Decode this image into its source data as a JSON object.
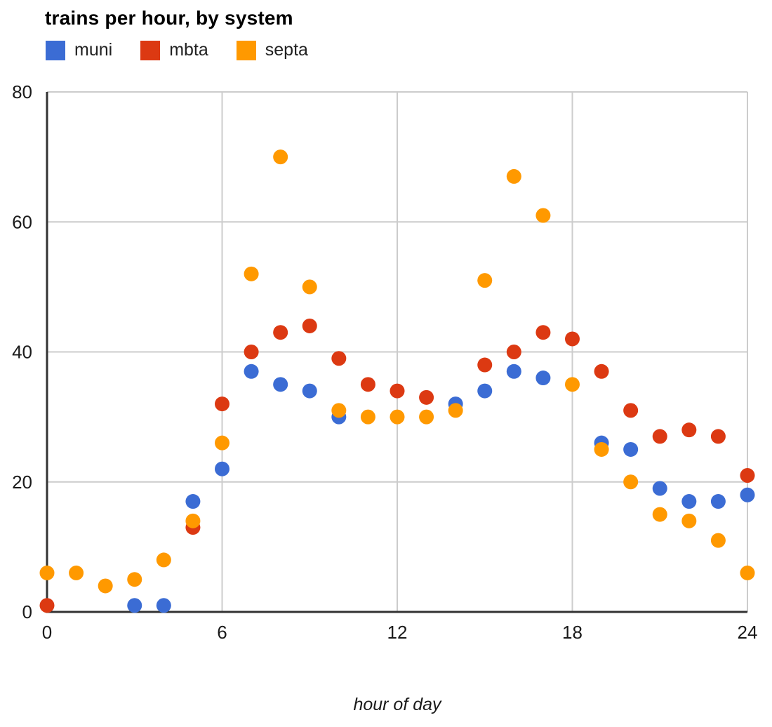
{
  "title": "trains per hour, by system",
  "legend": [
    {
      "label": "muni",
      "color": "#3B6CD4"
    },
    {
      "label": "mbta",
      "color": "#DC3912"
    },
    {
      "label": "septa",
      "color": "#FF9900"
    }
  ],
  "colors": {
    "grid": "#cccccc",
    "axis": "#333333",
    "muni": "#3B6CD4",
    "mbta": "#DC3912",
    "septa": "#FF9900"
  },
  "chart_data": {
    "type": "scatter",
    "title": "trains per hour, by system",
    "xlabel": "hour of day",
    "ylabel": "",
    "xlim": [
      0,
      24
    ],
    "ylim": [
      0,
      80
    ],
    "x_ticks": [
      0,
      6,
      12,
      18,
      24
    ],
    "y_ticks": [
      0,
      20,
      40,
      60,
      80
    ],
    "grid": true,
    "legend_position": "top-left",
    "marker_radius_px": 10.5,
    "series": [
      {
        "name": "muni",
        "color": "#3B6CD4",
        "points": [
          [
            3,
            1
          ],
          [
            4,
            1
          ],
          [
            5,
            17
          ],
          [
            6,
            22
          ],
          [
            7,
            37
          ],
          [
            8,
            35
          ],
          [
            9,
            34
          ],
          [
            10,
            30
          ],
          [
            14,
            32
          ],
          [
            15,
            34
          ],
          [
            16,
            37
          ],
          [
            17,
            36
          ],
          [
            19,
            26
          ],
          [
            20,
            25
          ],
          [
            21,
            19
          ],
          [
            22,
            17
          ],
          [
            23,
            17
          ],
          [
            24,
            18
          ]
        ]
      },
      {
        "name": "mbta",
        "color": "#DC3912",
        "points": [
          [
            0,
            1
          ],
          [
            5,
            13
          ],
          [
            6,
            32
          ],
          [
            7,
            40
          ],
          [
            8,
            43
          ],
          [
            9,
            44
          ],
          [
            10,
            39
          ],
          [
            11,
            35
          ],
          [
            12,
            34
          ],
          [
            13,
            33
          ],
          [
            15,
            38
          ],
          [
            16,
            40
          ],
          [
            17,
            43
          ],
          [
            18,
            42
          ],
          [
            19,
            37
          ],
          [
            20,
            31
          ],
          [
            21,
            27
          ],
          [
            22,
            28
          ],
          [
            23,
            27
          ],
          [
            24,
            21
          ]
        ]
      },
      {
        "name": "septa",
        "color": "#FF9900",
        "points": [
          [
            0,
            6
          ],
          [
            1,
            6
          ],
          [
            2,
            4
          ],
          [
            3,
            5
          ],
          [
            4,
            8
          ],
          [
            5,
            14
          ],
          [
            6,
            26
          ],
          [
            7,
            52
          ],
          [
            8,
            70
          ],
          [
            9,
            50
          ],
          [
            10,
            31
          ],
          [
            11,
            30
          ],
          [
            12,
            30
          ],
          [
            13,
            30
          ],
          [
            14,
            31
          ],
          [
            15,
            51
          ],
          [
            16,
            67
          ],
          [
            17,
            61
          ],
          [
            18,
            35
          ],
          [
            19,
            25
          ],
          [
            20,
            20
          ],
          [
            21,
            15
          ],
          [
            22,
            14
          ],
          [
            23,
            11
          ],
          [
            24,
            6
          ]
        ]
      }
    ]
  }
}
